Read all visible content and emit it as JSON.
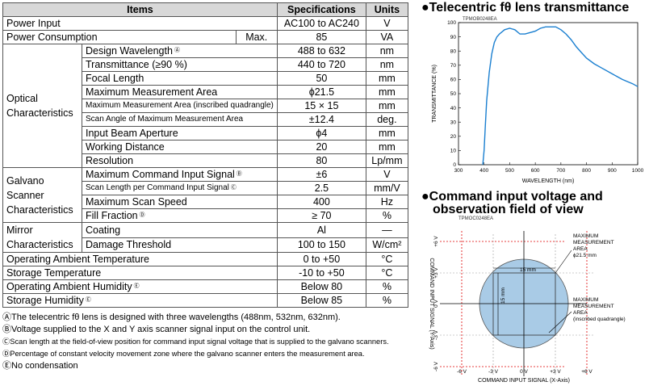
{
  "table": {
    "headers": [
      "Items",
      "Specifications",
      "Units"
    ],
    "power_input": {
      "label": "Power Input",
      "spec": "AC100 to AC240",
      "unit": "V"
    },
    "power_consumption": {
      "label": "Power Consumption",
      "qualifier": "Max.",
      "spec": "85",
      "unit": "VA"
    },
    "optical_group": "Optical Characteristics",
    "optical": [
      {
        "label": "Design Wavelength",
        "fn": "Ⓐ",
        "spec": "488 to 632",
        "unit": "nm"
      },
      {
        "label": "Transmittance (≥90 %)",
        "spec": "440 to 720",
        "unit": "nm"
      },
      {
        "label": "Focal Length",
        "spec": "50",
        "unit": "mm"
      },
      {
        "label": "Maximum Measurement Area",
        "spec": "ϕ21.5",
        "unit": "mm"
      },
      {
        "label": "Maximum Measurement Area (inscribed quadrangle)",
        "spec": "15 × 15",
        "unit": "mm",
        "small": true
      },
      {
        "label": "Scan Angle of Maximum Measurement Area",
        "spec": "±12.4",
        "unit": "deg.",
        "small": true
      },
      {
        "label": "Input Beam Aperture",
        "spec": "ϕ4",
        "unit": "mm"
      },
      {
        "label": "Working Distance",
        "spec": "20",
        "unit": "mm"
      },
      {
        "label": "Resolution",
        "spec": "80",
        "unit": "Lp/mm"
      }
    ],
    "galvano_group": "Galvano Scanner Characteristics",
    "galvano": [
      {
        "label": "Maximum Command Input Signal",
        "fn": "Ⓑ",
        "spec": "±6",
        "unit": "V"
      },
      {
        "label": "Scan Length per Command Input Signal",
        "fn": "Ⓒ",
        "spec": "2.5",
        "unit": "mm/V",
        "small": true
      },
      {
        "label": "Maximum Scan Speed",
        "spec": "400",
        "unit": "Hz"
      },
      {
        "label": "Fill Fraction",
        "fn": "Ⓓ",
        "spec": "≥ 70",
        "unit": "%"
      }
    ],
    "mirror_group": "Mirror Characteristics",
    "mirror": [
      {
        "label": "Coating",
        "spec": "Al",
        "unit": "—"
      },
      {
        "label": "Damage Threshold",
        "spec": "100 to 150",
        "unit": "W/cm²"
      }
    ],
    "tail": [
      {
        "label": "Operating Ambient Temperature",
        "spec": "0 to +50",
        "unit": "°C"
      },
      {
        "label": "Storage Temperature",
        "spec": "-10 to +50",
        "unit": "°C"
      },
      {
        "label": "Operating Ambient Humidity",
        "fn": "Ⓔ",
        "spec": "Below 80",
        "unit": "%"
      },
      {
        "label": "Storage Humidity",
        "fn": "Ⓔ",
        "spec": "Below 85",
        "unit": "%"
      }
    ]
  },
  "notes": [
    "ⒶThe telecentric fθ lens is designed with three wavelengths (488nm, 532nm, 632nm).",
    "ⒷVoltage supplied to the X and Y axis scanner signal input on the control unit.",
    "ⒸScan length at the field-of-view position for command input signal voltage that is supplied to the galvano scanners.",
    "ⒹPercentage of constant velocity movement zone where the galvano scanner enters the measurement area.",
    "ⒺNo condensation"
  ],
  "transmittance": {
    "heading": "●Telecentric fθ lens transmittance",
    "code": "TPMOB0248EA"
  },
  "field": {
    "heading_line1": "●Command input voltage and",
    "heading_line2": "observation field of view",
    "code": "TPMOC0248EA",
    "y_axis_label": "COMMAND INPUT SIGNAL (Y-Axis)",
    "x_axis_label": "COMMAND INPUT SIGNAL (X-Axis)",
    "x_ticks": [
      "-6 V",
      "-3 V",
      "0 V",
      "+3 V",
      "+6 V"
    ],
    "y_ticks": [
      "-6 V",
      "-3 V",
      "0 V",
      "+3 V",
      "+6 V"
    ],
    "dim_horizontal": "15 mm",
    "dim_vertical": "15 mm",
    "callout1": [
      "MAXIMUM",
      "MEASUREMENT",
      "AREA",
      "ϕ21.5 mm"
    ],
    "callout2": [
      "MAXIMUM",
      "MEASUREMENT",
      "AREA",
      "(inscribed quadrangle)"
    ]
  },
  "chart_data": {
    "type": "line",
    "title": "",
    "xlabel": "WAVELENGTH (nm)",
    "ylabel": "TRANSMITTANCE (%)",
    "xlim": [
      300,
      1000
    ],
    "ylim": [
      0,
      100
    ],
    "x_ticks": [
      300,
      400,
      500,
      600,
      700,
      800,
      900,
      1000
    ],
    "y_ticks": [
      0,
      10,
      20,
      30,
      40,
      50,
      60,
      70,
      80,
      90,
      100
    ],
    "grid": false,
    "x": [
      395,
      400,
      405,
      410,
      420,
      430,
      440,
      450,
      460,
      480,
      500,
      520,
      540,
      560,
      580,
      600,
      620,
      640,
      660,
      680,
      700,
      720,
      740,
      760,
      780,
      800,
      830,
      860,
      900,
      940,
      980,
      1000
    ],
    "y": [
      0,
      10,
      28,
      45,
      65,
      78,
      86,
      90,
      92,
      95,
      96,
      95,
      92,
      92,
      93,
      94,
      96,
      97,
      97,
      97,
      95,
      92,
      88,
      83,
      79,
      75,
      71,
      68,
      64,
      60,
      57,
      55
    ]
  }
}
